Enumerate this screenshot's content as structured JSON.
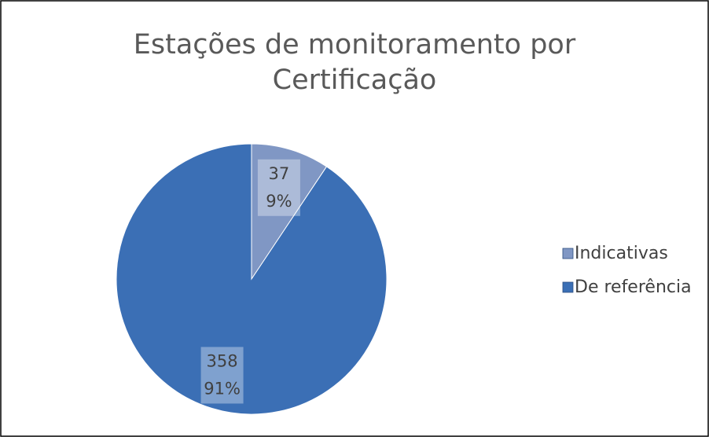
{
  "chart_data": {
    "type": "pie",
    "title": [
      "Estações de monitoramento por",
      "Certificação"
    ],
    "categories": [
      "Indicativas",
      "De referência"
    ],
    "values": [
      37,
      358
    ],
    "percent_labels": [
      "9%",
      "91%"
    ],
    "colors": [
      "#8097c4",
      "#3b6fb5"
    ],
    "legend": "right"
  }
}
